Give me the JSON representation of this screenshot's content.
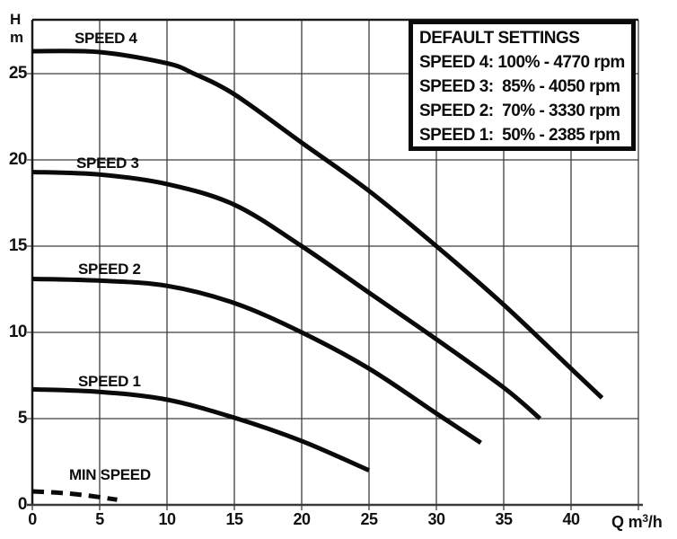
{
  "colors": {
    "curve": "#0a0a0a",
    "grid": "#3d3d3d",
    "axis": "#1a1a1a",
    "text": "#111111",
    "background": "#ffffff"
  },
  "legend": {
    "title": "DEFAULT SETTINGS",
    "entries": [
      "SPEED 4: 100% - 4770 rpm",
      "SPEED 3:  85% - 4050 rpm",
      "SPEED 2:  70% - 3330 rpm",
      "SPEED 1:  50% - 2385 rpm"
    ]
  },
  "chart_data": {
    "type": "line",
    "title": "",
    "xlabel": "Q m³/h",
    "xlabel_parts": {
      "pre": "Q m",
      "sup": "3",
      "post": "/h"
    },
    "ylabel": "H m",
    "ylabel_lines": [
      "H",
      "m"
    ],
    "xlim": [
      0,
      45
    ],
    "ylim": [
      0,
      28.125
    ],
    "grid": true,
    "grid_step_x": 5,
    "grid_step_y": 5,
    "x_ticks": [
      0,
      5,
      10,
      15,
      20,
      25,
      30,
      35,
      40
    ],
    "y_ticks": [
      0,
      5,
      10,
      15,
      20,
      25
    ],
    "legend_position": "top-right",
    "series": [
      {
        "name": "SPEED 4",
        "line_style": "solid",
        "points": [
          [
            0,
            26.3
          ],
          [
            5,
            26.25
          ],
          [
            10,
            25.6
          ],
          [
            12,
            25.0
          ],
          [
            15,
            23.8
          ],
          [
            20,
            21.0
          ],
          [
            25,
            18.2
          ],
          [
            30,
            15.0
          ],
          [
            35,
            11.6
          ],
          [
            40,
            7.9
          ],
          [
            42.3,
            6.2
          ]
        ]
      },
      {
        "name": "SPEED 3",
        "line_style": "solid",
        "points": [
          [
            0,
            19.3
          ],
          [
            5,
            19.15
          ],
          [
            10,
            18.6
          ],
          [
            15,
            17.4
          ],
          [
            20,
            15.0
          ],
          [
            25,
            12.3
          ],
          [
            30,
            9.6
          ],
          [
            35,
            6.8
          ],
          [
            37.7,
            5.0
          ]
        ]
      },
      {
        "name": "SPEED 2",
        "line_style": "solid",
        "points": [
          [
            0,
            13.1
          ],
          [
            5,
            13.0
          ],
          [
            10,
            12.7
          ],
          [
            15,
            11.7
          ],
          [
            20,
            10.0
          ],
          [
            25,
            7.9
          ],
          [
            30,
            5.3
          ],
          [
            33.3,
            3.6
          ]
        ]
      },
      {
        "name": "SPEED 1",
        "line_style": "solid",
        "points": [
          [
            0,
            6.7
          ],
          [
            5,
            6.55
          ],
          [
            10,
            6.1
          ],
          [
            15,
            5.05
          ],
          [
            20,
            3.7
          ],
          [
            25,
            2.0
          ]
        ]
      },
      {
        "name": "MIN SPEED",
        "line_style": "dashed",
        "points": [
          [
            0,
            0.78
          ],
          [
            2,
            0.7
          ],
          [
            4,
            0.55
          ],
          [
            6.3,
            0.3
          ]
        ]
      }
    ]
  }
}
